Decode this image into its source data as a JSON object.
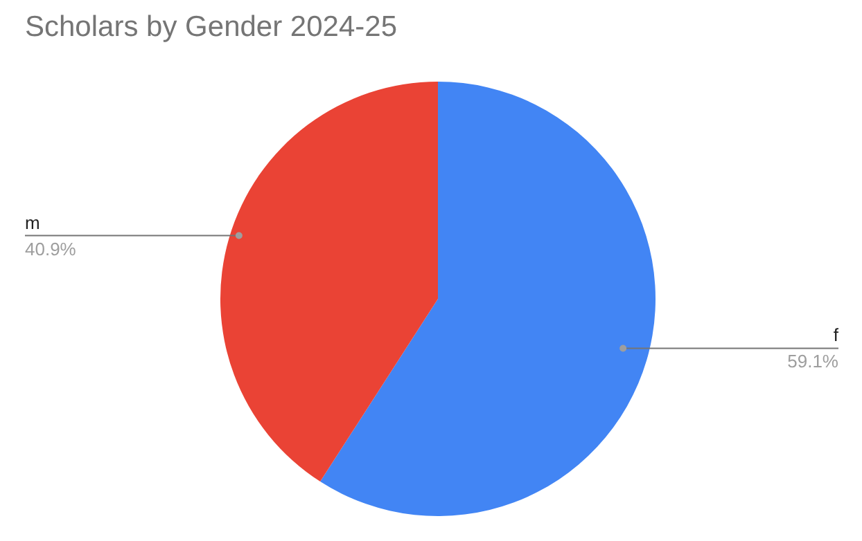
{
  "chart_data": {
    "type": "pie",
    "title": "Scholars by Gender 2024-25",
    "categories": [
      "f",
      "m"
    ],
    "values": [
      59.1,
      40.9
    ],
    "colors": [
      "#4285f4",
      "#ea4335"
    ],
    "value_labels": [
      "59.1%",
      "40.9%"
    ],
    "legend": false
  }
}
